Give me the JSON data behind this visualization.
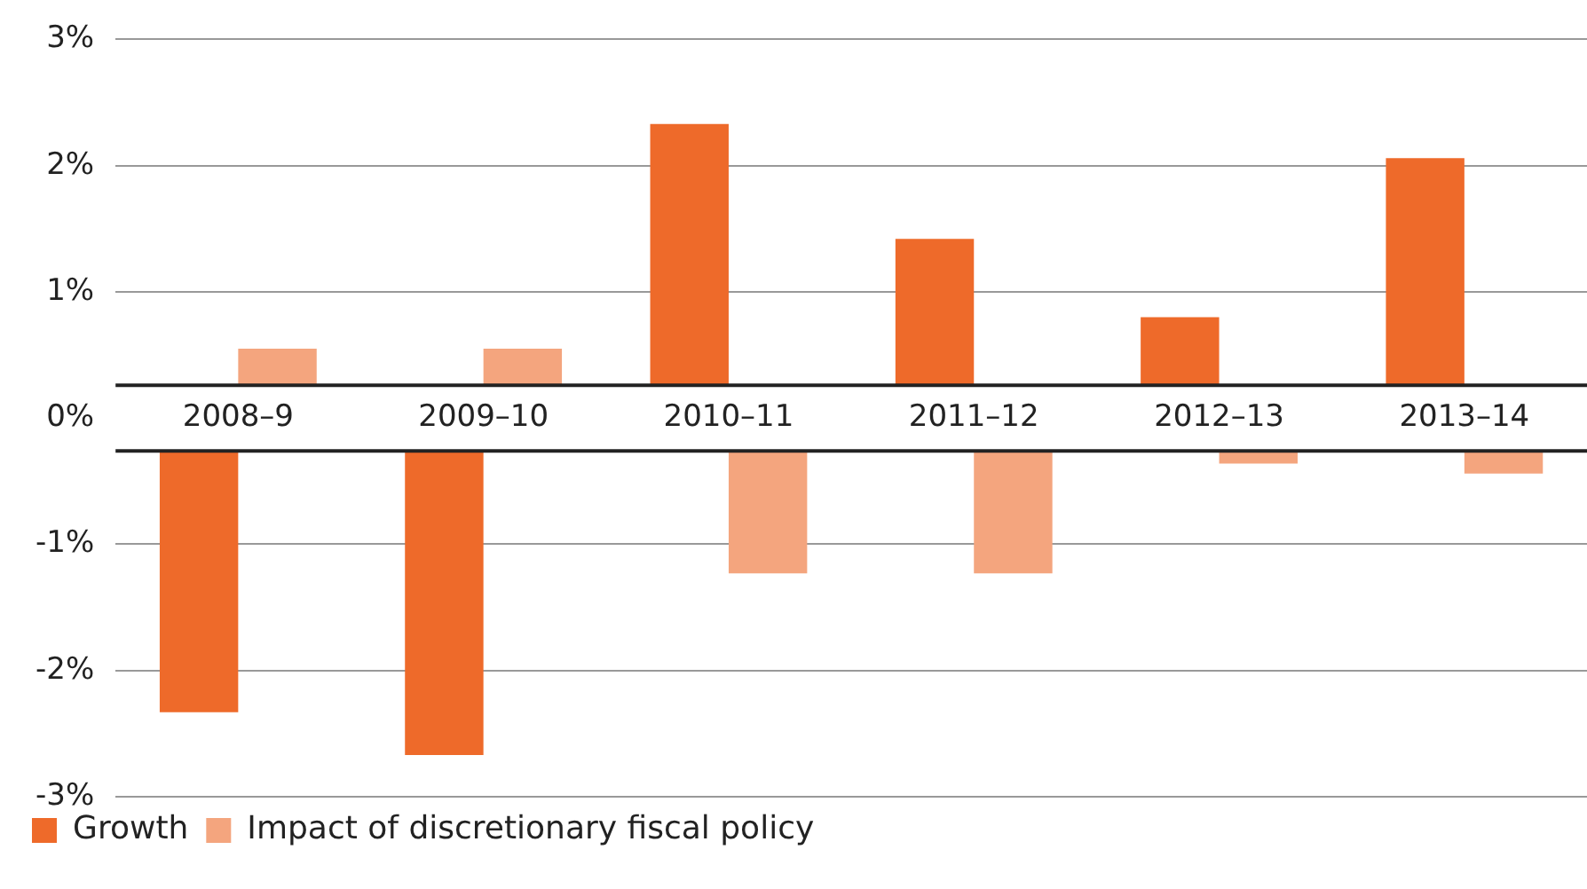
{
  "chart_data": {
    "type": "bar",
    "categories": [
      "2008–9",
      "2009–10",
      "2010–11",
      "2011–12",
      "2012–13",
      "2013–14"
    ],
    "series": [
      {
        "name": "Growth",
        "color": "#ee6a2a",
        "values": [
          -2.33,
          -2.67,
          2.33,
          1.42,
          0.8,
          2.06
        ]
      },
      {
        "name": "Impact of discretionary fiscal policy",
        "color": "#f4a57e",
        "values": [
          0.55,
          0.55,
          -1.23,
          -1.23,
          -0.36,
          -0.44
        ]
      }
    ],
    "ylim": [
      -3,
      3
    ],
    "bands": [
      {
        "axis": "y",
        "from": -0.26,
        "to": 0.26,
        "color": "#ffffff"
      }
    ],
    "ref_lines": [
      {
        "axis": "y",
        "value": 0.26,
        "color": "#222222"
      },
      {
        "axis": "y",
        "value": -0.26,
        "color": "#222222"
      }
    ],
    "yticks": [
      {
        "value": 3,
        "label": "3%"
      },
      {
        "value": 2,
        "label": "2%"
      },
      {
        "value": 1,
        "label": "1%"
      },
      {
        "value": 0,
        "label": "0%"
      },
      {
        "value": -1,
        "label": "-1%"
      },
      {
        "value": -2,
        "label": "-2%"
      },
      {
        "value": -3,
        "label": "-3%"
      }
    ],
    "grid": "y",
    "legend": "bottom left"
  }
}
